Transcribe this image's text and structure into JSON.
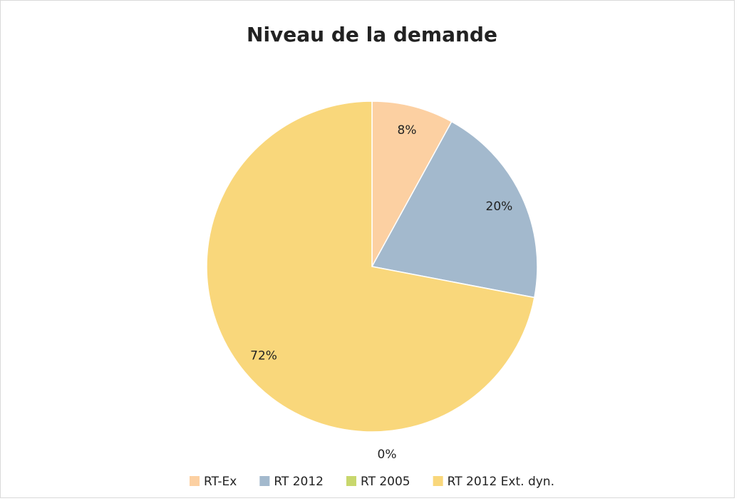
{
  "chart_data": {
    "type": "pie",
    "title": "Niveau de la demande",
    "categories": [
      "RT-Ex",
      "RT 2012",
      "RT 2005",
      "RT 2012 Ext. dyn."
    ],
    "values": [
      8,
      20,
      0,
      72
    ],
    "value_labels": [
      "8%",
      "20%",
      "0%",
      "72%"
    ],
    "colors": [
      "#fcd0a2",
      "#a3b9cd",
      "#c8d76d",
      "#f9d77b"
    ],
    "legend": "bottom"
  }
}
